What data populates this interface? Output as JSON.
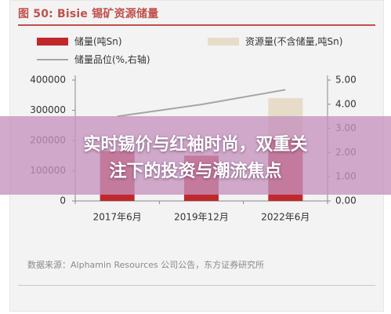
{
  "figure_title": "图 50: Bisie 锡矿资源储量",
  "legend": {
    "bar_reserve": "储量(吨Sn)",
    "bar_resource": "资源量(不含储量,吨Sn)",
    "line_grade": "储量品位(%,右轴)"
  },
  "source": "数据来源：Alphamin Resources 公司公告，东方证券研究所",
  "overlay": {
    "line1": "实时锡价与红袖时尚，双重关",
    "line2": "注下的投资与潮流焦点"
  },
  "colors": {
    "reserve": "#c0282c",
    "resource": "#e6dcc9",
    "grade": "#a5a5a5",
    "title": "#c0504d"
  },
  "chart_data": {
    "type": "bar",
    "categories": [
      "2017年6月",
      "2019年12月",
      "2022年6月"
    ],
    "series": [
      {
        "name": "储量(吨Sn)",
        "type": "bar",
        "axis": "left",
        "values": [
          165000,
          150000,
          205000
        ]
      },
      {
        "name": "资源量(不含储量,吨Sn)",
        "type": "bar",
        "axis": "left",
        "stacked": true,
        "values": [
          0,
          0,
          135000
        ]
      },
      {
        "name": "储量品位(%,右轴)",
        "type": "line",
        "axis": "right",
        "values": [
          3.5,
          3.99,
          4.6
        ]
      }
    ],
    "left_axis": {
      "min": 0,
      "max": 400000,
      "ticks": [
        "0",
        "100000",
        "200000",
        "300000",
        "400000"
      ]
    },
    "right_axis": {
      "min": 0,
      "max": 5,
      "ticks": [
        "0.00",
        "1.00",
        "2.00",
        "3.00",
        "4.00",
        "5.00"
      ]
    },
    "legend_position": "top",
    "grid": false
  }
}
